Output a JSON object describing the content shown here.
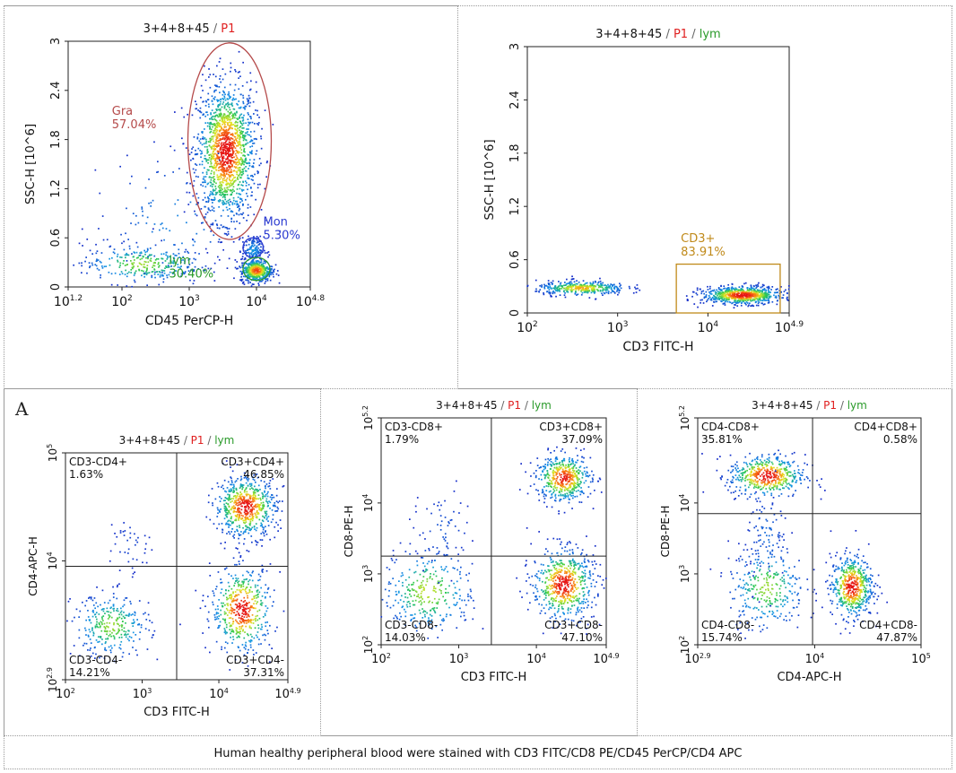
{
  "panel_letter": "A",
  "caption": "Human healthy peripheral blood were stained with CD3 FITC/CD8 PE/CD45 PerCP/CD4 APC",
  "colors": {
    "title_black": "#111111",
    "p1_red": "#e02020",
    "lym_green": "#2a9a2a",
    "gra": "#b54a4a",
    "mon": "#2a3ad0",
    "lym": "#2a9a2a",
    "cd3gate": "#c08a1a"
  },
  "chart_data": [
    {
      "id": "cd45_ssc",
      "type": "scatter",
      "title_parts": [
        "3+4+8+45",
        " / ",
        "P1"
      ],
      "xlabel": "CD45 PerCP-H",
      "ylabel": "SSC-H [10^6]",
      "x_scale": "log",
      "xlim": [
        1.2,
        4.8
      ],
      "x_ticks": [
        {
          "pos": 1.2,
          "label": "10",
          "sup": "1.2"
        },
        {
          "pos": 2,
          "label": "10",
          "sup": "2"
        },
        {
          "pos": 3,
          "label": "10",
          "sup": "3"
        },
        {
          "pos": 4,
          "label": "10",
          "sup": "4"
        },
        {
          "pos": 4.8,
          "label": "10",
          "sup": "4.8"
        }
      ],
      "ylim": [
        0,
        3
      ],
      "y_ticks": [
        {
          "pos": 0,
          "label": "0"
        },
        {
          "pos": 0.6,
          "label": "0.6"
        },
        {
          "pos": 1.2,
          "label": "1.2"
        },
        {
          "pos": 1.8,
          "label": "1.8"
        },
        {
          "pos": 2.4,
          "label": "2.4"
        },
        {
          "pos": 3,
          "label": "3"
        }
      ],
      "populations": [
        {
          "cx": 3.55,
          "cy": 1.65,
          "sx": 0.22,
          "sy": 0.42,
          "n": 1500
        },
        {
          "cx": 3.95,
          "cy": 0.45,
          "sx": 0.08,
          "sy": 0.08,
          "n": 150
        },
        {
          "cx": 4.0,
          "cy": 0.2,
          "sx": 0.12,
          "sy": 0.07,
          "n": 450
        },
        {
          "cx": 2.3,
          "cy": 0.28,
          "sx": 0.45,
          "sy": 0.12,
          "n": 300
        },
        {
          "cx": 2.8,
          "cy": 0.8,
          "sx": 0.6,
          "sy": 0.45,
          "n": 120
        }
      ],
      "gates": [
        {
          "shape": "ellipse",
          "cx": 3.6,
          "cy": 1.78,
          "rx": 0.62,
          "ry": 1.2,
          "color": "#b54a4a",
          "name": "Gra",
          "pct": "57.04%",
          "lx": 1.85,
          "ly": 2.1
        },
        {
          "shape": "ellipse",
          "cx": 3.95,
          "cy": 0.48,
          "rx": 0.15,
          "ry": 0.12,
          "color": "#2a3ad0",
          "name": "Mon",
          "pct": "5.30%",
          "lx": 4.1,
          "ly": 0.75
        },
        {
          "shape": "ellipse",
          "cx": 4.0,
          "cy": 0.22,
          "rx": 0.2,
          "ry": 0.14,
          "color": "#2a9a2a",
          "name": "lym",
          "pct": "30.40%",
          "lx": 2.7,
          "ly": 0.28
        }
      ]
    },
    {
      "id": "cd3_ssc",
      "type": "scatter",
      "title_parts": [
        "3+4+8+45",
        " / ",
        "P1",
        " / ",
        "lym"
      ],
      "xlabel": "CD3 FITC-H",
      "ylabel": "SSC-H [10^6]",
      "x_scale": "log",
      "xlim": [
        2,
        4.9
      ],
      "x_ticks": [
        {
          "pos": 2,
          "label": "10",
          "sup": "2"
        },
        {
          "pos": 3,
          "label": "10",
          "sup": "3"
        },
        {
          "pos": 4,
          "label": "10",
          "sup": "4"
        },
        {
          "pos": 4.9,
          "label": "10",
          "sup": "4.9"
        }
      ],
      "ylim": [
        0,
        3
      ],
      "y_ticks": [
        {
          "pos": 0,
          "label": "0"
        },
        {
          "pos": 0.6,
          "label": "0.6"
        },
        {
          "pos": 1.2,
          "label": "1.2"
        },
        {
          "pos": 1.8,
          "label": "1.8"
        },
        {
          "pos": 2.4,
          "label": "2.4"
        },
        {
          "pos": 3,
          "label": "3"
        }
      ],
      "populations": [
        {
          "cx": 2.6,
          "cy": 0.28,
          "sx": 0.25,
          "sy": 0.04,
          "n": 380
        },
        {
          "cx": 4.38,
          "cy": 0.2,
          "sx": 0.22,
          "sy": 0.05,
          "n": 750
        }
      ],
      "gates": [
        {
          "shape": "rect",
          "x0": 3.65,
          "x1": 4.8,
          "y0": 0,
          "y1": 0.55,
          "color": "#c08a1a",
          "name": "CD3+",
          "pct": "83.91%",
          "lx": 3.7,
          "ly": 0.8
        }
      ]
    },
    {
      "id": "cd3_cd4",
      "type": "scatter",
      "title_parts": [
        "3+4+8+45",
        " / ",
        "P1",
        " / ",
        "lym"
      ],
      "xlabel": "CD3 FITC-H",
      "ylabel": "CD4-APC-H",
      "x_scale": "log",
      "xlim": [
        2,
        4.9
      ],
      "x_ticks": [
        {
          "pos": 2,
          "label": "10",
          "sup": "2"
        },
        {
          "pos": 3,
          "label": "10",
          "sup": "3"
        },
        {
          "pos": 4,
          "label": "10",
          "sup": "4"
        },
        {
          "pos": 4.9,
          "label": "10",
          "sup": "4.9"
        }
      ],
      "y_scale": "log",
      "ylim": [
        2.9,
        5
      ],
      "y_ticks": [
        {
          "pos": 2.9,
          "label": "10",
          "sup": "2.9"
        },
        {
          "pos": 4,
          "label": "10",
          "sup": "4"
        },
        {
          "pos": 5,
          "label": "10",
          "sup": "5"
        }
      ],
      "populations": [
        {
          "cx": 4.35,
          "cy": 4.5,
          "sx": 0.2,
          "sy": 0.14,
          "n": 650
        },
        {
          "cx": 4.3,
          "cy": 3.55,
          "sx": 0.2,
          "sy": 0.2,
          "n": 500
        },
        {
          "cx": 2.6,
          "cy": 3.4,
          "sx": 0.25,
          "sy": 0.15,
          "n": 300
        },
        {
          "cx": 2.85,
          "cy": 4.15,
          "sx": 0.15,
          "sy": 0.15,
          "n": 40
        }
      ],
      "divider": {
        "x": 3.45,
        "y": 3.95
      },
      "quadrants": [
        {
          "name": "CD3-CD4+",
          "pct": "1.63%",
          "corner": "tl"
        },
        {
          "name": "CD3+CD4+",
          "pct": "46.85%",
          "corner": "tr"
        },
        {
          "name": "CD3-CD4-",
          "pct": "14.21%",
          "corner": "bl"
        },
        {
          "name": "CD3+CD4-",
          "pct": "37.31%",
          "corner": "br"
        }
      ]
    },
    {
      "id": "cd3_cd8",
      "type": "scatter",
      "title_parts": [
        "3+4+8+45",
        " / ",
        "P1",
        " / ",
        "lym"
      ],
      "xlabel": "CD3 FITC-H",
      "ylabel": "CD8-PE-H",
      "x_scale": "log",
      "xlim": [
        2,
        4.9
      ],
      "x_ticks": [
        {
          "pos": 2,
          "label": "10",
          "sup": "2"
        },
        {
          "pos": 3,
          "label": "10",
          "sup": "3"
        },
        {
          "pos": 4,
          "label": "10",
          "sup": "4"
        },
        {
          "pos": 4.9,
          "label": "10",
          "sup": "4.9"
        }
      ],
      "y_scale": "log",
      "ylim": [
        2,
        5.2
      ],
      "y_ticks": [
        {
          "pos": 2,
          "label": "10",
          "sup": "2"
        },
        {
          "pos": 3,
          "label": "10",
          "sup": "3"
        },
        {
          "pos": 4,
          "label": "10",
          "sup": "4"
        },
        {
          "pos": 5.2,
          "label": "10",
          "sup": "5.2"
        }
      ],
      "populations": [
        {
          "cx": 4.35,
          "cy": 4.35,
          "sx": 0.18,
          "sy": 0.17,
          "n": 480
        },
        {
          "cx": 4.35,
          "cy": 2.85,
          "sx": 0.2,
          "sy": 0.25,
          "n": 600
        },
        {
          "cx": 2.6,
          "cy": 2.75,
          "sx": 0.3,
          "sy": 0.3,
          "n": 320
        },
        {
          "cx": 2.8,
          "cy": 3.6,
          "sx": 0.2,
          "sy": 0.3,
          "n": 60
        }
      ],
      "divider": {
        "x": 3.42,
        "y": 3.25
      },
      "quadrants": [
        {
          "name": "CD3-CD8+",
          "pct": "1.79%",
          "corner": "tl"
        },
        {
          "name": "CD3+CD8+",
          "pct": "37.09%",
          "corner": "tr"
        },
        {
          "name": "CD3-CD8-",
          "pct": "14.03%",
          "corner": "bl"
        },
        {
          "name": "CD3+CD8-",
          "pct": "47.10%",
          "corner": "br"
        }
      ]
    },
    {
      "id": "cd4_cd8",
      "type": "scatter",
      "title_parts": [
        "3+4+8+45",
        " / ",
        "P1",
        " / ",
        "lym"
      ],
      "xlabel": "CD4-APC-H",
      "ylabel": "CD8-PE-H",
      "x_scale": "log",
      "xlim": [
        2.9,
        5
      ],
      "x_ticks": [
        {
          "pos": 2.9,
          "label": "10",
          "sup": "2.9"
        },
        {
          "pos": 4,
          "label": "10",
          "sup": "4"
        },
        {
          "pos": 5,
          "label": "10",
          "sup": "5"
        }
      ],
      "y_scale": "log",
      "ylim": [
        2,
        5.2
      ],
      "y_ticks": [
        {
          "pos": 2,
          "label": "10",
          "sup": "2"
        },
        {
          "pos": 3,
          "label": "10",
          "sup": "3"
        },
        {
          "pos": 4,
          "label": "10",
          "sup": "4"
        },
        {
          "pos": 5.2,
          "label": "10",
          "sup": "5.2"
        }
      ],
      "populations": [
        {
          "cx": 3.55,
          "cy": 4.38,
          "sx": 0.18,
          "sy": 0.15,
          "n": 500
        },
        {
          "cx": 4.35,
          "cy": 2.82,
          "sx": 0.1,
          "sy": 0.22,
          "n": 550
        },
        {
          "cx": 3.55,
          "cy": 2.8,
          "sx": 0.18,
          "sy": 0.3,
          "n": 300
        },
        {
          "cx": 3.55,
          "cy": 3.5,
          "sx": 0.1,
          "sy": 0.35,
          "n": 90
        }
      ],
      "divider": {
        "x": 3.98,
        "y": 3.85
      },
      "quadrants": [
        {
          "name": "CD4-CD8+",
          "pct": "35.81%",
          "corner": "tl"
        },
        {
          "name": "CD4+CD8+",
          "pct": "0.58%",
          "corner": "tr"
        },
        {
          "name": "CD4-CD8-",
          "pct": "15.74%",
          "corner": "bl"
        },
        {
          "name": "CD4+CD8-",
          "pct": "47.87%",
          "corner": "br"
        }
      ]
    }
  ]
}
